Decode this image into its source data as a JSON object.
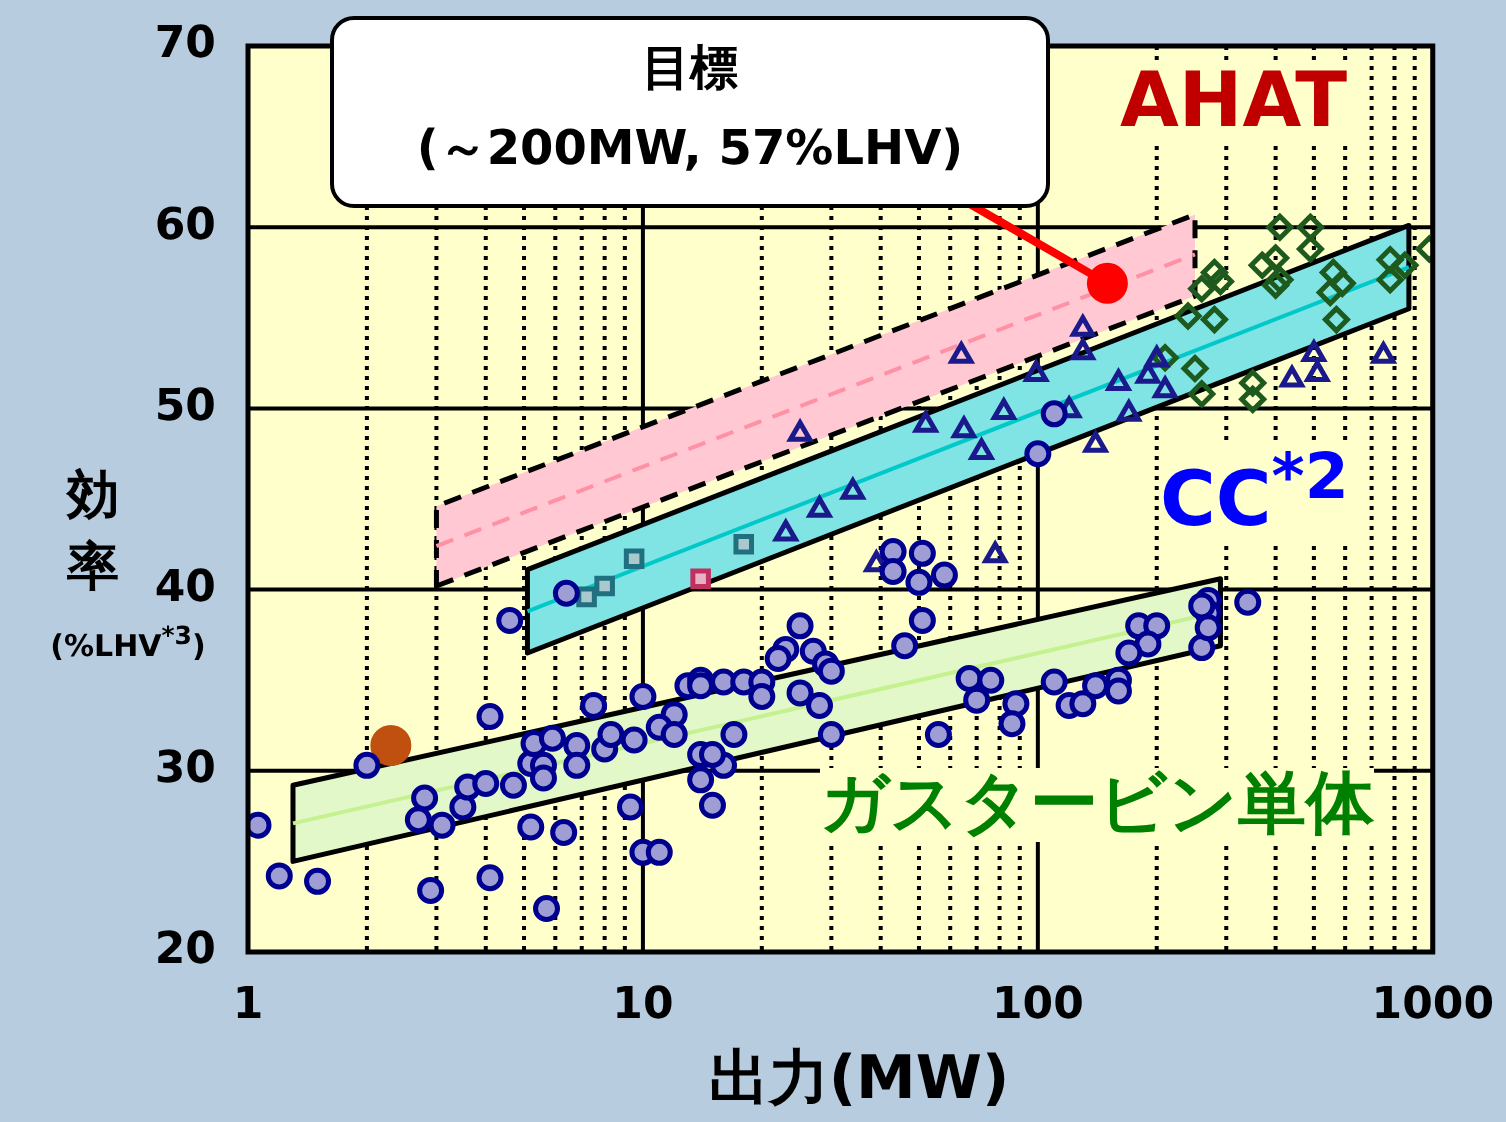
{
  "chart_data": {
    "type": "scatter",
    "xlabel": "出力(MW)",
    "ylabel": "効率 (%LHV$^{*3}$)",
    "log": "x",
    "grid": true,
    "xlim": [
      1,
      1000
    ],
    "ylim": [
      20,
      70
    ],
    "xticks": [
      1,
      {
        "value": 2,
        "label": null
      },
      {
        "value": 3,
        "label": null
      },
      {
        "value": 4,
        "label": null
      },
      {
        "value": 5,
        "label": null
      },
      {
        "value": 6,
        "label": null
      },
      {
        "value": 7,
        "label": null
      },
      {
        "value": 8,
        "label": null
      },
      {
        "value": 9,
        "label": null
      },
      10,
      {
        "value": 20,
        "label": null
      },
      {
        "value": 30,
        "label": null
      },
      {
        "value": 40,
        "label": null
      },
      {
        "value": 50,
        "label": null
      },
      {
        "value": 60,
        "label": null
      },
      {
        "value": 70,
        "label": null
      },
      {
        "value": 80,
        "label": null
      },
      {
        "value": 90,
        "label": null
      },
      100,
      {
        "value": 200,
        "label": null
      },
      {
        "value": 300,
        "label": null
      },
      {
        "value": 400,
        "label": null
      },
      {
        "value": 500,
        "label": null
      },
      {
        "value": 600,
        "label": null
      },
      {
        "value": 700,
        "label": null
      },
      {
        "value": 800,
        "label": null
      },
      {
        "value": 900,
        "label": null
      },
      1000
    ],
    "yticks": [
      20,
      30,
      40,
      50,
      60,
      70
    ],
    "annotations": [
      {
        "text": "目標\n(～200MW, 57%LHV)",
        "x": 150,
        "y": 56.9
      }
    ],
    "series": [
      {
        "type": "line",
        "name": "AHAT",
        "color": "#ff91a5",
        "x": [
          3.0,
          250
        ],
        "values": [
          42.4,
          58.5
        ],
        "lower": [
          40.2,
          56.2
        ],
        "upper": [
          44.6,
          60.7
        ],
        "line_style": "dashed",
        "marker": "none"
      },
      {
        "type": "line",
        "name": "CC$^{*2}$",
        "color": "#01c9c9",
        "x": [
          5.1,
          870
        ],
        "values": [
          38.8,
          57.8
        ],
        "lower": [
          36.5,
          55.5
        ],
        "upper": [
          41.1,
          60.1
        ],
        "line_style": "solid",
        "marker": "none"
      },
      {
        "type": "line",
        "name": "ガスタービン単体",
        "color": "#c5f191",
        "x": [
          1.3,
          290
        ],
        "values": [
          27.1,
          38.8
        ],
        "lower": [
          25.0,
          36.9
        ],
        "upper": [
          29.2,
          40.6
        ],
        "line_style": "solid",
        "marker": "none"
      },
      {
        "type": "scatter",
        "color": "#000090",
        "marker": "circle",
        "x": [
          4.6,
          6.4,
          7.5,
          4.1,
          10,
          2.0,
          1.06,
          1.2,
          1.5,
          2.9,
          4.1,
          5.7,
          5.2,
          6.3,
          3.1,
          9.3,
          10,
          2.8,
          2.7,
          3.5,
          3.6,
          4.0,
          4.7,
          5.2,
          5.6,
          5.6,
          5.3,
          5.9,
          6.8,
          6.8,
          8.0,
          8.3,
          9.5,
          13,
          14,
          14,
          16,
          18,
          20,
          25,
          23,
          22,
          27,
          29,
          43,
          43,
          51,
          50,
          58,
          51,
          46,
          56,
          88,
          86,
          70,
          14,
          15,
          11,
          16,
          30,
          12,
          11,
          12,
          14,
          15,
          17,
          20,
          25,
          28,
          30,
          67,
          76,
          120,
          130,
          140,
          160,
          160,
          110,
          340,
          260,
          180,
          200,
          190,
          170,
          270,
          270,
          270,
          260,
          110,
          100
        ],
        "values": [
          38.3,
          39.8,
          33.6,
          33.0,
          34.1,
          30.3,
          27.0,
          24.2,
          23.9,
          23.4,
          24.1,
          22.4,
          26.9,
          26.6,
          27.0,
          28.0,
          25.5,
          28.5,
          27.3,
          28.0,
          29.1,
          29.3,
          29.2,
          30.4,
          30.3,
          29.6,
          31.5,
          31.8,
          31.4,
          30.3,
          31.2,
          32.0,
          31.7,
          34.7,
          35.0,
          34.7,
          34.9,
          34.9,
          34.9,
          38.0,
          36.7,
          36.2,
          36.6,
          35.9,
          42.1,
          41.0,
          42.0,
          40.4,
          40.8,
          38.3,
          36.9,
          32.0,
          33.7,
          32.6,
          33.9,
          29.5,
          28.1,
          25.5,
          30.3,
          32.0,
          33.1,
          32.4,
          32.0,
          30.9,
          30.9,
          32.0,
          34.1,
          34.3,
          33.6,
          35.5,
          35.1,
          35.0,
          33.6,
          33.7,
          34.7,
          35.0,
          34.4,
          34.9,
          39.3,
          36.8,
          38.0,
          38.0,
          37.0,
          36.5,
          39.4,
          38.7,
          37.9,
          39.1,
          49.7,
          47.5
        ]
      },
      {
        "type": "scatter",
        "color": "#c05010",
        "marker": "circle",
        "x": [
          2.3
        ],
        "values": [
          31.4
        ]
      },
      {
        "type": "scatter",
        "color": "#1a1a8c",
        "marker": "triangle",
        "x": [
          25,
          64,
          34,
          52,
          65,
          72,
          82,
          99,
          23,
          28,
          39,
          78,
          130,
          130,
          120,
          140,
          160,
          170,
          200,
          190,
          210,
          440,
          500,
          510,
          750
        ],
        "values": [
          48.6,
          52.9,
          45.4,
          49.1,
          48.8,
          47.6,
          49.8,
          51.9,
          43.1,
          44.4,
          41.4,
          41.9,
          54.4,
          53.1,
          49.9,
          48.0,
          51.4,
          49.7,
          52.7,
          51.8,
          51.0,
          51.6,
          53.0,
          51.9,
          52.9
        ]
      },
      {
        "type": "scatter",
        "color": "#1e5a1e",
        "marker": "diamond",
        "x": [
          410,
          490,
          370,
          400,
          490,
          280,
          290,
          260,
          210,
          250,
          260,
          350,
          350,
          570,
          980,
          240,
          280,
          400,
          410,
          550,
          590,
          560,
          780,
          850,
          780
        ],
        "values": [
          60.0,
          60.0,
          57.9,
          58.3,
          58.8,
          57.5,
          57.0,
          56.6,
          52.8,
          52.2,
          50.8,
          51.4,
          50.5,
          54.9,
          58.8,
          55.1,
          54.9,
          56.8,
          57.1,
          56.4,
          56.9,
          57.5,
          58.2,
          57.9,
          57.1
        ]
      },
      {
        "type": "scatter",
        "color": "#207080",
        "marker": "square",
        "x": [
          8.0,
          7.2,
          9.5,
          18
        ],
        "values": [
          40.2,
          39.6,
          41.7,
          42.5
        ]
      },
      {
        "type": "scatter",
        "color": "#c03060",
        "marker": "square",
        "x": [
          14
        ],
        "values": [
          40.6
        ]
      },
      {
        "type": "scatter",
        "color": "#ff0000",
        "marker": "circle",
        "x": [
          150
        ],
        "values": [
          56.9
        ]
      }
    ]
  }
}
